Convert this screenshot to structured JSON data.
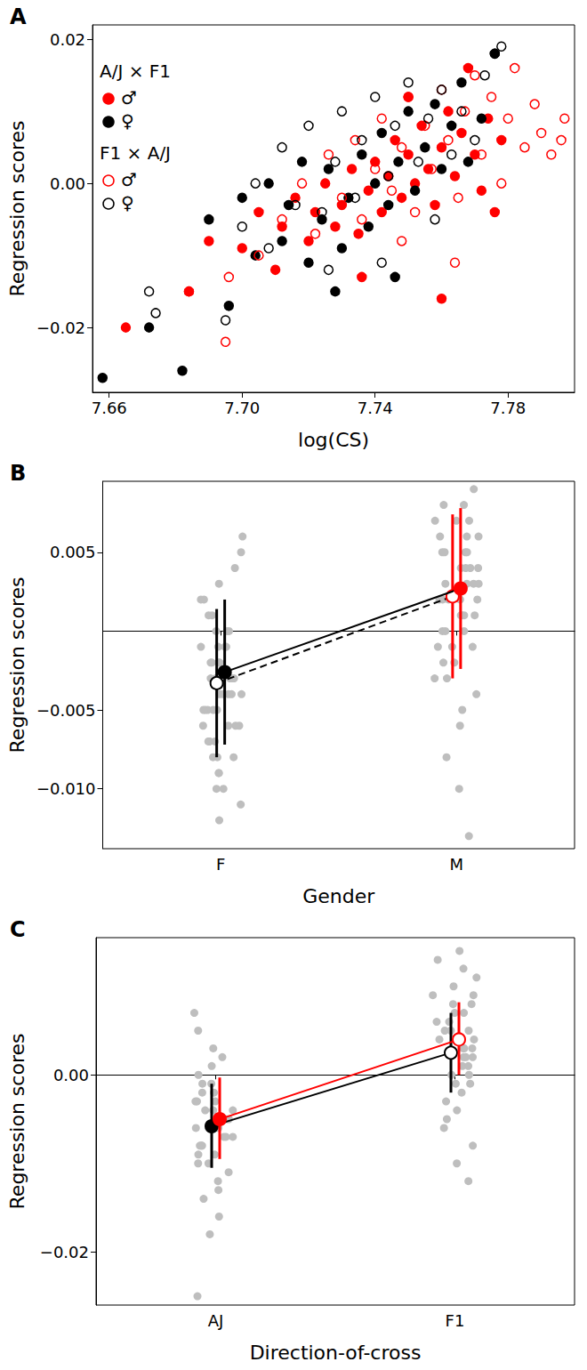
{
  "chart_data": [
    {
      "type": "scatter",
      "title": "A",
      "x_label": "log(CS)",
      "y_label": "Regression scores",
      "xlim": [
        7.655,
        7.8
      ],
      "xticks": [
        7.66,
        {
          "value": 7.7,
          "label": "7.70"
        },
        7.74,
        7.78
      ],
      "ylim": [
        -0.029,
        0.022
      ],
      "yticks": [
        {
          "value": -0.02,
          "label": "−0.02"
        },
        {
          "value": 0,
          "label": "0.00"
        },
        {
          "value": 0.02,
          "label": "0.02"
        }
      ],
      "grid": false,
      "series": [
        {
          "group": "A/J × F1",
          "name": "♂",
          "color": "#ff0000",
          "marker": "filled",
          "values": [
            [
              7.665,
              -0.02
            ],
            [
              7.684,
              -0.015
            ],
            [
              7.69,
              -0.008
            ],
            [
              7.7,
              -0.009
            ],
            [
              7.705,
              -0.004
            ],
            [
              7.71,
              -0.012
            ],
            [
              7.712,
              -0.006
            ],
            [
              7.716,
              -0.002
            ],
            [
              7.72,
              -0.008
            ],
            [
              7.722,
              -0.004
            ],
            [
              7.725,
              0.0
            ],
            [
              7.728,
              -0.006
            ],
            [
              7.73,
              -0.003
            ],
            [
              7.733,
              0.002
            ],
            [
              7.735,
              -0.007
            ],
            [
              7.738,
              -0.001
            ],
            [
              7.74,
              0.003
            ],
            [
              7.742,
              -0.004
            ],
            [
              7.744,
              0.001
            ],
            [
              7.746,
              0.006
            ],
            [
              7.748,
              -0.002
            ],
            [
              7.75,
              0.004
            ],
            [
              7.752,
              0.0
            ],
            [
              7.754,
              0.008
            ],
            [
              7.756,
              0.002
            ],
            [
              7.758,
              -0.003
            ],
            [
              7.76,
              0.005
            ],
            [
              7.762,
              0.01
            ],
            [
              7.764,
              0.001
            ],
            [
              7.766,
              0.007
            ],
            [
              7.768,
              0.016
            ],
            [
              7.77,
              0.004
            ],
            [
              7.772,
              -0.001
            ],
            [
              7.774,
              0.009
            ],
            [
              7.776,
              -0.004
            ],
            [
              7.778,
              0.006
            ],
            [
              7.76,
              -0.016
            ],
            [
              7.736,
              -0.013
            ],
            [
              7.75,
              0.012
            ]
          ]
        },
        {
          "group": "A/J × F1",
          "name": "♀",
          "color": "#000000",
          "marker": "filled",
          "values": [
            [
              7.658,
              -0.027
            ],
            [
              7.672,
              -0.02
            ],
            [
              7.682,
              -0.026
            ],
            [
              7.69,
              -0.005
            ],
            [
              7.696,
              -0.017
            ],
            [
              7.7,
              -0.002
            ],
            [
              7.704,
              -0.01
            ],
            [
              7.708,
              0.0
            ],
            [
              7.712,
              -0.008
            ],
            [
              7.714,
              -0.003
            ],
            [
              7.718,
              0.003
            ],
            [
              7.72,
              -0.011
            ],
            [
              7.724,
              -0.005
            ],
            [
              7.726,
              0.002
            ],
            [
              7.73,
              -0.009
            ],
            [
              7.732,
              -0.002
            ],
            [
              7.736,
              0.004
            ],
            [
              7.738,
              -0.006
            ],
            [
              7.74,
              0.0
            ],
            [
              7.742,
              0.007
            ],
            [
              7.744,
              -0.003
            ],
            [
              7.747,
              0.003
            ],
            [
              7.75,
              0.01
            ],
            [
              7.752,
              -0.001
            ],
            [
              7.755,
              0.005
            ],
            [
              7.758,
              0.011
            ],
            [
              7.76,
              0.002
            ],
            [
              7.763,
              0.008
            ],
            [
              7.766,
              0.014
            ],
            [
              7.768,
              0.003
            ],
            [
              7.772,
              0.009
            ],
            [
              7.776,
              0.018
            ],
            [
              7.746,
              -0.013
            ],
            [
              7.728,
              -0.015
            ]
          ]
        },
        {
          "group": "F1 × A/J",
          "name": "♂",
          "color": "#ff0000",
          "marker": "open",
          "values": [
            [
              7.684,
              -0.015
            ],
            [
              7.695,
              -0.022
            ],
            [
              7.696,
              -0.013
            ],
            [
              7.705,
              -0.01
            ],
            [
              7.712,
              -0.005
            ],
            [
              7.718,
              0.0
            ],
            [
              7.722,
              -0.007
            ],
            [
              7.726,
              0.004
            ],
            [
              7.73,
              -0.002
            ],
            [
              7.734,
              0.006
            ],
            [
              7.736,
              -0.005
            ],
            [
              7.74,
              0.002
            ],
            [
              7.742,
              0.009
            ],
            [
              7.745,
              -0.001
            ],
            [
              7.748,
              0.005
            ],
            [
              7.75,
              0.012
            ],
            [
              7.752,
              -0.004
            ],
            [
              7.755,
              0.008
            ],
            [
              7.757,
              0.002
            ],
            [
              7.76,
              0.013
            ],
            [
              7.762,
              0.006
            ],
            [
              7.765,
              -0.002
            ],
            [
              7.767,
              0.01
            ],
            [
              7.77,
              0.015
            ],
            [
              7.772,
              0.004
            ],
            [
              7.775,
              0.012
            ],
            [
              7.778,
              0.0
            ],
            [
              7.78,
              0.009
            ],
            [
              7.782,
              0.016
            ],
            [
              7.785,
              0.005
            ],
            [
              7.788,
              0.011
            ],
            [
              7.79,
              0.007
            ],
            [
              7.793,
              0.004
            ],
            [
              7.796,
              0.006
            ],
            [
              7.797,
              0.009
            ],
            [
              7.764,
              -0.011
            ],
            [
              7.748,
              -0.008
            ]
          ]
        },
        {
          "group": "F1 × A/J",
          "name": "♀",
          "color": "#000000",
          "marker": "open",
          "values": [
            [
              7.672,
              -0.015
            ],
            [
              7.674,
              -0.018
            ],
            [
              7.695,
              -0.019
            ],
            [
              7.7,
              -0.006
            ],
            [
              7.704,
              0.0
            ],
            [
              7.708,
              -0.009
            ],
            [
              7.712,
              0.005
            ],
            [
              7.716,
              -0.003
            ],
            [
              7.72,
              0.008
            ],
            [
              7.724,
              -0.004
            ],
            [
              7.728,
              0.003
            ],
            [
              7.73,
              0.01
            ],
            [
              7.734,
              -0.002
            ],
            [
              7.736,
              0.006
            ],
            [
              7.74,
              0.012
            ],
            [
              7.744,
              0.001
            ],
            [
              7.746,
              0.008
            ],
            [
              7.75,
              0.014
            ],
            [
              7.753,
              0.003
            ],
            [
              7.756,
              0.009
            ],
            [
              7.76,
              0.013
            ],
            [
              7.763,
              0.004
            ],
            [
              7.766,
              0.01
            ],
            [
              7.77,
              0.006
            ],
            [
              7.773,
              0.015
            ],
            [
              7.776,
              0.018
            ],
            [
              7.778,
              0.019
            ],
            [
              7.758,
              -0.005
            ],
            [
              7.742,
              -0.011
            ],
            [
              7.726,
              -0.012
            ]
          ]
        }
      ]
    },
    {
      "type": "strip",
      "title": "B",
      "x_label": "Gender",
      "y_label": "Regression scores",
      "categories": [
        "F",
        "M"
      ],
      "ylim": [
        -0.0138,
        0.0095
      ],
      "yticks": [
        {
          "value": -0.01,
          "label": "−0.010"
        },
        {
          "value": -0.005,
          "label": "−0.005"
        },
        {
          "value": 0.005,
          "label": "0.005"
        }
      ],
      "grid": false,
      "points": [
        [
          -0.012,
          -0.011,
          -0.01,
          -0.01,
          -0.009,
          -0.009,
          -0.008,
          -0.008,
          -0.008,
          -0.007,
          -0.007,
          -0.007,
          -0.007,
          -0.006,
          -0.006,
          -0.006,
          -0.006,
          -0.005,
          -0.005,
          -0.005,
          -0.005,
          -0.005,
          -0.004,
          -0.004,
          -0.004,
          -0.004,
          -0.004,
          -0.003,
          -0.003,
          -0.003,
          -0.003,
          -0.003,
          -0.002,
          -0.002,
          -0.002,
          -0.002,
          -0.001,
          -0.001,
          -0.001,
          -0.001,
          0.0,
          0.0,
          0.0,
          0.001,
          0.001,
          0.002,
          0.002,
          0.003,
          0.004,
          0.005,
          0.006
        ],
        [
          -0.013,
          -0.01,
          -0.008,
          -0.006,
          -0.005,
          -0.004,
          -0.003,
          -0.003,
          -0.002,
          -0.002,
          -0.001,
          -0.001,
          -0.001,
          0.0,
          0.0,
          0.0,
          0.001,
          0.001,
          0.001,
          0.001,
          0.002,
          0.002,
          0.002,
          0.002,
          0.002,
          0.003,
          0.003,
          0.003,
          0.003,
          0.004,
          0.004,
          0.004,
          0.004,
          0.005,
          0.005,
          0.005,
          0.005,
          0.006,
          0.006,
          0.006,
          0.007,
          0.007,
          0.007,
          0.008,
          0.008,
          0.009
        ]
      ],
      "series": [
        {
          "color": "#000000",
          "colors": [
            "#000000",
            "#ff0000"
          ],
          "marker": "open",
          "line_style": "dashed",
          "values": [
            -0.0033,
            0.0022
          ],
          "lower": [
            -0.008,
            -0.003
          ],
          "upper": [
            0.0014,
            0.0074
          ]
        },
        {
          "color": "#000000",
          "colors": [
            "#000000",
            "#ff0000"
          ],
          "marker": "filled",
          "line_style": "solid",
          "values": [
            -0.0026,
            0.0027
          ],
          "lower": [
            -0.0072,
            -0.0024
          ],
          "upper": [
            0.002,
            0.0078
          ]
        }
      ]
    },
    {
      "type": "strip",
      "title": "C",
      "x_label": "Direction-of-cross",
      "y_label": "Regression scores",
      "categories": [
        "AJ",
        "F1"
      ],
      "ylim": [
        -0.026,
        0.0155
      ],
      "yticks": [
        {
          "value": -0.02,
          "label": "−0.02"
        },
        {
          "value": 0,
          "label": "0.00"
        }
      ],
      "grid": false,
      "points": [
        [
          -0.025,
          -0.018,
          -0.016,
          -0.014,
          -0.013,
          -0.012,
          -0.011,
          -0.01,
          -0.01,
          -0.009,
          -0.009,
          -0.008,
          -0.008,
          -0.008,
          -0.007,
          -0.007,
          -0.007,
          -0.006,
          -0.006,
          -0.006,
          -0.005,
          -0.005,
          -0.005,
          -0.005,
          -0.004,
          -0.004,
          -0.004,
          -0.003,
          -0.003,
          -0.003,
          -0.002,
          -0.002,
          -0.001,
          -0.001,
          0.0,
          0.001,
          0.002,
          0.003,
          0.005,
          0.007
        ],
        [
          -0.012,
          -0.01,
          -0.008,
          -0.006,
          -0.005,
          -0.004,
          -0.003,
          -0.002,
          -0.001,
          -0.001,
          0.0,
          0.0,
          0.001,
          0.001,
          0.002,
          0.002,
          0.002,
          0.003,
          0.003,
          0.003,
          0.004,
          0.004,
          0.004,
          0.005,
          0.005,
          0.005,
          0.006,
          0.006,
          0.007,
          0.007,
          0.008,
          0.008,
          0.009,
          0.009,
          0.01,
          0.011,
          0.012,
          0.013,
          0.014
        ]
      ],
      "series": [
        {
          "color": "#000000",
          "marker": [
            "filled",
            "open"
          ],
          "line_style": "solid",
          "values": [
            -0.0058,
            0.0025
          ],
          "lower": [
            -0.0105,
            -0.002
          ],
          "upper": [
            -0.001,
            0.007
          ]
        },
        {
          "color": "#ff0000",
          "marker": [
            "filled",
            "open"
          ],
          "line_style": "solid",
          "values": [
            -0.005,
            0.004
          ],
          "lower": [
            -0.0095,
            0.0
          ],
          "upper": [
            -0.0003,
            0.0082
          ]
        }
      ]
    }
  ]
}
